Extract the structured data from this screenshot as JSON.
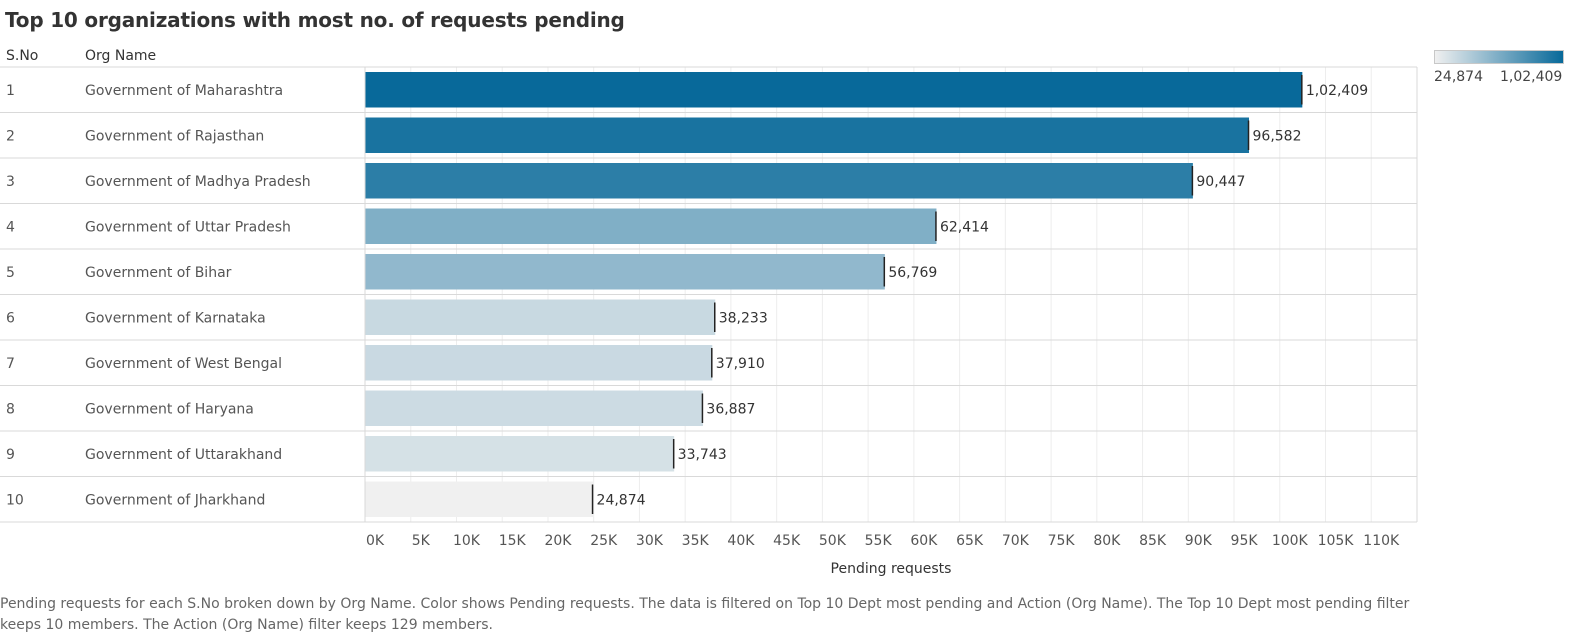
{
  "header": {
    "sno_label": "S.No",
    "org_label": "Org Name"
  },
  "legend": {
    "min_label": "24,874",
    "max_label": "1,02,409",
    "color_low": "#f0f0f0",
    "color_high": "#08699a"
  },
  "footer": {
    "caption": "Pending requests for each S.No broken down by Org Name.  Color shows Pending requests. The data is filtered on Top 10 Dept most pending and Action (Org Name). The Top 10 Dept most pending filter keeps 10 members. The Action (Org Name) filter keeps 129 members."
  },
  "chart_data": {
    "type": "bar",
    "orientation": "horizontal",
    "title": "Top 10 organizations with most no. of requests pending",
    "xlabel": "Pending requests",
    "ylabel": "",
    "xlim": [
      0,
      115000
    ],
    "ticks": [
      "0K",
      "5K",
      "10K",
      "15K",
      "20K",
      "25K",
      "30K",
      "35K",
      "40K",
      "45K",
      "50K",
      "55K",
      "60K",
      "65K",
      "70K",
      "75K",
      "80K",
      "85K",
      "90K",
      "95K",
      "100K",
      "105K",
      "110K"
    ],
    "grid": true,
    "rows": [
      {
        "sno": "1",
        "org": "Government of Maharashtra",
        "value": 102409,
        "label": "1,02,409"
      },
      {
        "sno": "2",
        "org": "Government of Rajasthan",
        "value": 96582,
        "label": "96,582"
      },
      {
        "sno": "3",
        "org": "Government of Madhya Pradesh",
        "value": 90447,
        "label": "90,447"
      },
      {
        "sno": "4",
        "org": "Government of Uttar Pradesh",
        "value": 62414,
        "label": "62,414"
      },
      {
        "sno": "5",
        "org": "Government of Bihar",
        "value": 56769,
        "label": "56,769"
      },
      {
        "sno": "6",
        "org": "Government of Karnataka",
        "value": 38233,
        "label": "38,233"
      },
      {
        "sno": "7",
        "org": "Government of West Bengal",
        "value": 37910,
        "label": "37,910"
      },
      {
        "sno": "8",
        "org": "Government of Haryana",
        "value": 36887,
        "label": "36,887"
      },
      {
        "sno": "9",
        "org": "Government of Uttarakhand",
        "value": 33743,
        "label": "33,743"
      },
      {
        "sno": "10",
        "org": "Government of Jharkhand",
        "value": 24874,
        "label": "24,874"
      }
    ]
  }
}
